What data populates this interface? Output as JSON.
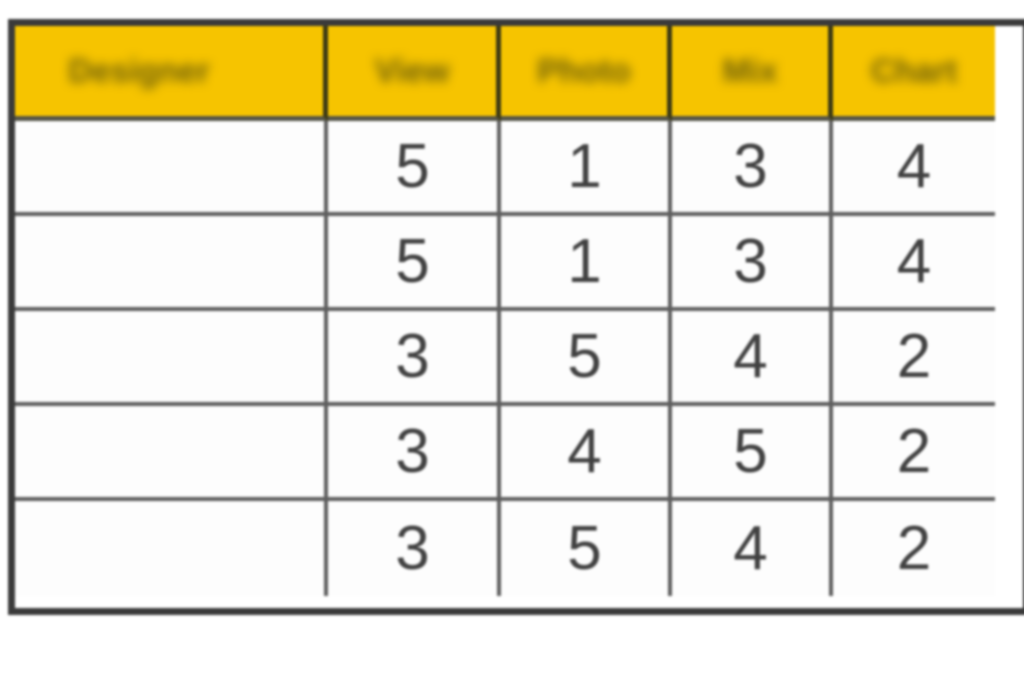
{
  "chart_data": {
    "type": "table",
    "title": "",
    "columns": [
      "Designer",
      "View",
      "Photo",
      "Mix",
      "Chart"
    ],
    "rows": [
      [
        "",
        "5",
        "1",
        "3",
        "4"
      ],
      [
        "",
        "5",
        "1",
        "3",
        "4"
      ],
      [
        "",
        "3",
        "5",
        "4",
        "2"
      ],
      [
        "",
        "3",
        "4",
        "5",
        "2"
      ],
      [
        "",
        "3",
        "5",
        "4",
        "2"
      ]
    ],
    "layout": {
      "header_bg": "#f6c400",
      "header_text_blurred": true,
      "grid_on": true,
      "outer_border_color": "#3a3a3a",
      "inner_border_color": "#5e5e5e",
      "value_text_color": "#414141",
      "first_column_empty": true
    }
  }
}
